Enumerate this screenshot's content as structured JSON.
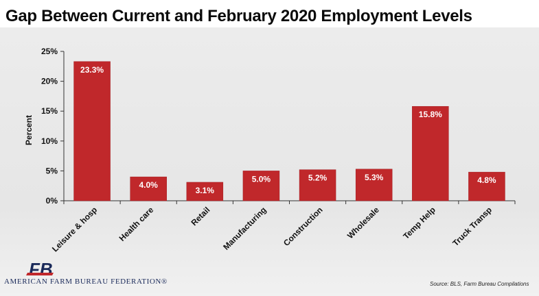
{
  "title": "Gap Between Current and February 2020 Employment Levels",
  "footer": {
    "org": "AMERICAN FARM BUREAU FEDERATION®",
    "logo_text": "FB",
    "source": "Source: BLS, Farm Bureau Compilations"
  },
  "colors": {
    "bar": "#c0282b",
    "bar_edge": "#a31d21",
    "logo_red": "#c0282b",
    "logo_blue": "#1a2a5a"
  },
  "chart_data": {
    "type": "bar",
    "title": "Gap Between Current and February 2020 Employment Levels",
    "xlabel": "",
    "ylabel": "Percent",
    "categories": [
      "Leisure & hosp",
      "Health care",
      "Retail",
      "Manufacturing",
      "Construction",
      "Wholesale",
      "Temp Help",
      "Truck Transp"
    ],
    "values": [
      23.3,
      4.0,
      3.1,
      5.0,
      5.2,
      5.3,
      15.8,
      4.8
    ],
    "data_labels": [
      "23.3%",
      "4.0%",
      "3.1%",
      "5.0%",
      "5.2%",
      "5.3%",
      "15.8%",
      "4.8%"
    ],
    "ylim": [
      0,
      25
    ],
    "yticks": [
      0,
      5,
      10,
      15,
      20,
      25
    ],
    "ytick_labels": [
      "0%",
      "5%",
      "10%",
      "15%",
      "20%",
      "25%"
    ],
    "grid": false,
    "legend": "none"
  }
}
